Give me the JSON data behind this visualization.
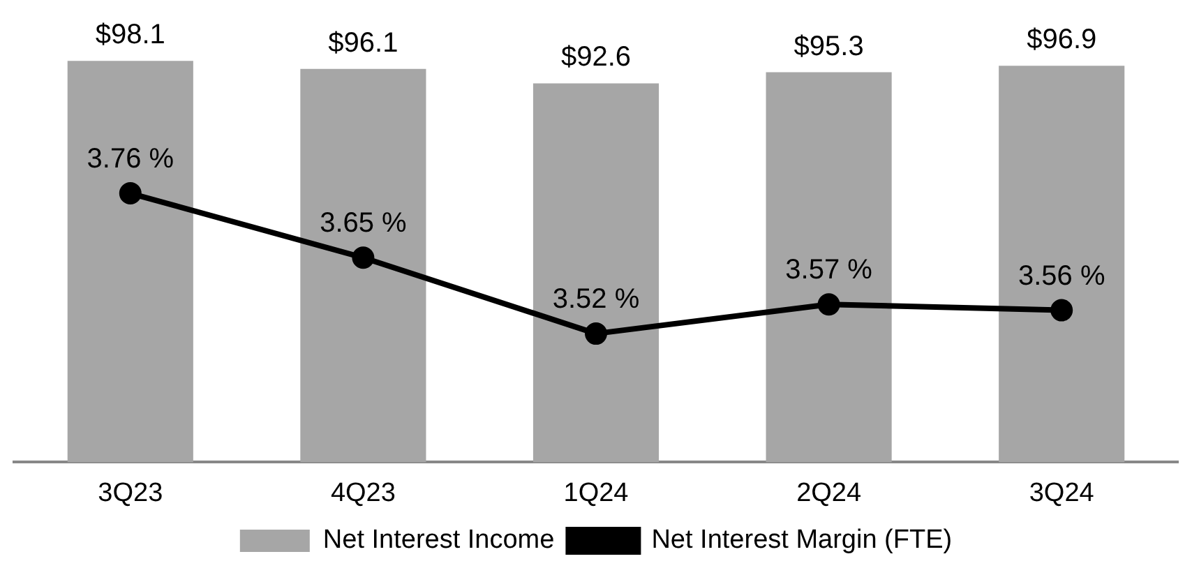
{
  "chart_data": {
    "type": "bar",
    "categories": [
      "3Q23",
      "4Q23",
      "1Q24",
      "2Q24",
      "3Q24"
    ],
    "series": [
      {
        "name": "Net Interest Income",
        "color": "#a6a6a6",
        "values": [
          98.1,
          96.1,
          92.6,
          95.3,
          96.9
        ],
        "value_labels": [
          "$98.1",
          "$96.1",
          "$92.6",
          "$95.3",
          "$96.9"
        ]
      },
      {
        "name": "Net Interest Margin (FTE)",
        "type": "line",
        "axis": "y2",
        "color": "#000000",
        "values": [
          3.76,
          3.65,
          3.52,
          3.57,
          3.56
        ],
        "value_labels": [
          "3.76 %",
          "3.65 %",
          "3.52 %",
          "3.57 %",
          "3.56 %"
        ]
      }
    ],
    "legend": "bottom",
    "marker": "circle",
    "line_style": "solid",
    "grid": false,
    "tick_labels": "x"
  }
}
